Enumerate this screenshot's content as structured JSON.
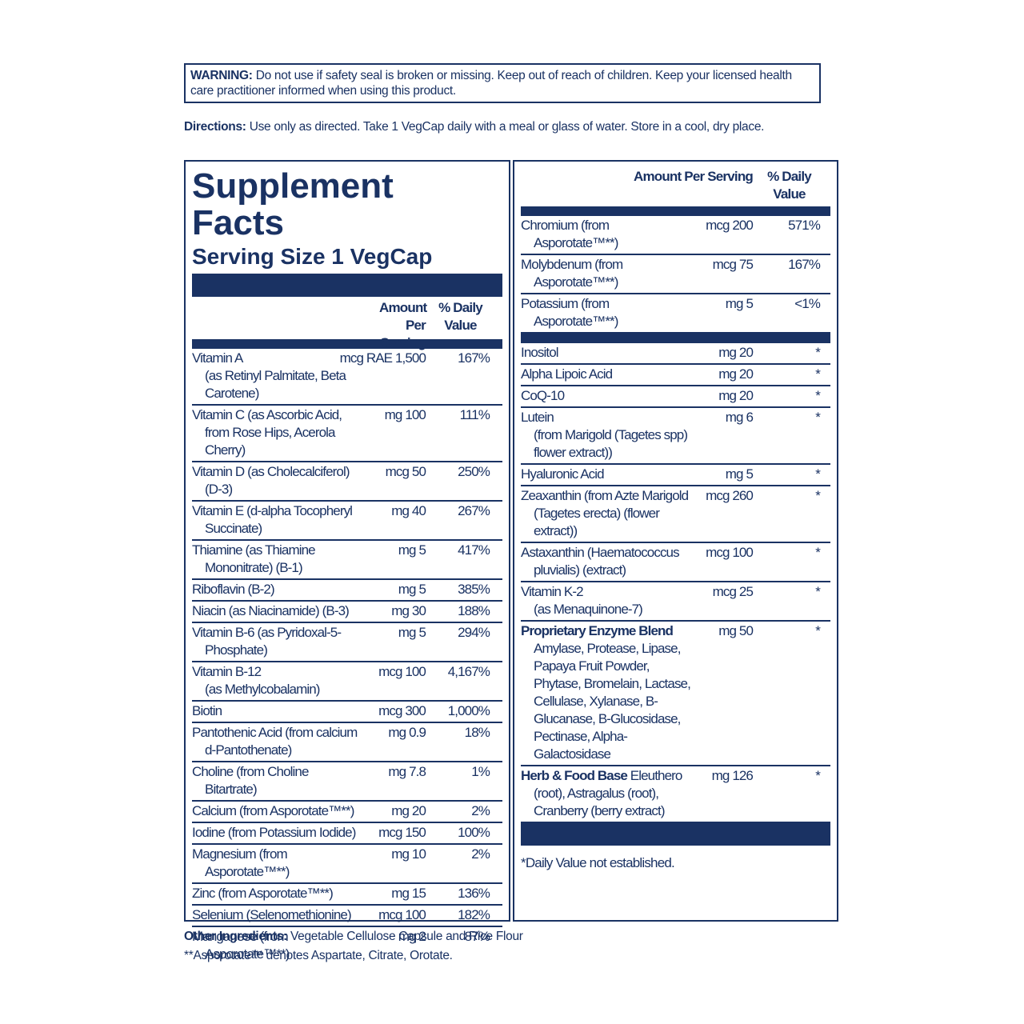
{
  "warning": {
    "label": "WARNING:",
    "text": "Do not use if safety seal is broken or missing. Keep out of reach of children. Keep your licensed health care practitioner informed when using this product."
  },
  "directions": {
    "label": "Directions:",
    "text": "Use only as directed. Take 1 VegCap daily with a meal or glass of water. Store in a cool, dry place."
  },
  "facts": {
    "title": "Supplement Facts",
    "serving": "Serving Size 1 VegCap",
    "left": {
      "header": {
        "amount": "Amount Per Serving",
        "dv": "% Daily Value"
      },
      "rows": [
        {
          "name": "Vitamin A",
          "detail": "(as Retinyl Palmitate, Beta Carotene)",
          "amount": "1,500 mcg RAE",
          "dv": "167%"
        },
        {
          "name": "Vitamin C (as Ascorbic Acid, from Rose Hips, Acerola Cherry)",
          "amount": "100 mg",
          "dv": "111%"
        },
        {
          "name": "Vitamin D (as Cholecalciferol) (D-3)",
          "amount": "50 mcg",
          "dv": "250%"
        },
        {
          "name": "Vitamin E (d-alpha Tocopheryl Succinate)",
          "amount": "40 mg",
          "dv": "267%"
        },
        {
          "name": "Thiamine (as Thiamine Mononitrate) (B-1)",
          "amount": "5 mg",
          "dv": "417%"
        },
        {
          "name": "Riboflavin (B-2)",
          "amount": "5 mg",
          "dv": "385%"
        },
        {
          "name": "Niacin (as Niacinamide) (B-3)",
          "amount": "30 mg",
          "dv": "188%"
        },
        {
          "name": "Vitamin B-6 (as Pyridoxal-5-Phosphate)",
          "amount": "5 mg",
          "dv": "294%"
        },
        {
          "name": "Vitamin B-12",
          "detail": "(as Methylcobalamin)",
          "amount": "100 mcg",
          "dv": "4,167%"
        },
        {
          "name": "Biotin",
          "amount": "300 mcg",
          "dv": "1,000%"
        },
        {
          "name": "Pantothenic Acid (from calcium d-Pantothenate)",
          "amount": "0.9 mg",
          "dv": "18%"
        },
        {
          "name": "Choline (from Choline Bitartrate)",
          "amount": "7.8 mg",
          "dv": "1%"
        },
        {
          "name": "Calcium (from Asporotate™**)",
          "amount": "20 mg",
          "dv": "2%"
        },
        {
          "name": "Iodine (from Potassium Iodide)",
          "amount": "150 mcg",
          "dv": "100%"
        },
        {
          "name": "Magnesium (from Asporotate™**)",
          "amount": "10 mg",
          "dv": "2%"
        },
        {
          "name": "Zinc (from Asporotate™**)",
          "amount": "15 mg",
          "dv": "136%"
        },
        {
          "name": "Selenium (Selenomethionine)",
          "amount": "100 mcg",
          "dv": "182%"
        },
        {
          "name": "Manganese (from Asporotate™**)",
          "amount": "2 mg",
          "dv": "87%"
        }
      ]
    },
    "right": {
      "header": {
        "amount": "Amount Per Serving",
        "dv": "% Daily Value"
      },
      "groups": [
        [
          {
            "name": "Chromium (from Asporotate™**)",
            "amount": "200 mcg",
            "dv": "571%"
          },
          {
            "name": "Molybdenum (from Asporotate™**)",
            "amount": "75 mcg",
            "dv": "167%"
          },
          {
            "name": "Potassium (from Asporotate™**)",
            "amount": "5 mg",
            "dv": "<1%"
          }
        ],
        [
          {
            "name": "Inositol",
            "amount": "20 mg",
            "dv": "*"
          },
          {
            "name": "Alpha Lipoic Acid",
            "amount": "20 mg",
            "dv": "*"
          },
          {
            "name": "CoQ-10",
            "amount": "20 mg",
            "dv": "*"
          },
          {
            "name": "Lutein",
            "detail": "(from Marigold (Tagetes spp) flower extract))",
            "amount": "6 mg",
            "dv": "*"
          },
          {
            "name": "Hyaluronic Acid",
            "amount": "5 mg",
            "dv": "*"
          },
          {
            "name": "Zeaxanthin (from Azte Marigold (Tagetes erecta) (flower extract))",
            "amount": "260 mcg",
            "dv": "*"
          },
          {
            "name": "Astaxanthin (Haematococcus pluvialis) (extract)",
            "amount": "100 mcg",
            "dv": "*"
          },
          {
            "name": "Vitamin K-2",
            "detail": "(as Menaquinone-7)",
            "amount": "25 mcg",
            "dv": "*"
          },
          {
            "name": "Proprietary Enzyme Blend",
            "bold": true,
            "detail": "Amylase, Protease, Lipase, Papaya Fruit Powder, Phytase, Bromelain, Lactase, Cellulase, Xylanase, B-Glucanase, B-Glucosidase, Pectinase, Alpha-Galactosidase",
            "amount": "50 mg",
            "dv": "*"
          },
          {
            "name": "Herb & Food Base",
            "bold": true,
            "inline": "Eleuthero (root), Astragalus (root), Cranberry (berry extract)",
            "amount": "126 mg",
            "dv": "*"
          }
        ]
      ],
      "footnote": "*Daily Value not established."
    }
  },
  "other": {
    "label": "Other Ingredients:",
    "text": "Vegetable Cellulose Capsule and Rice Flour"
  },
  "note": "**Asporotate™ denotes Aspartate, Citrate, Orotate."
}
